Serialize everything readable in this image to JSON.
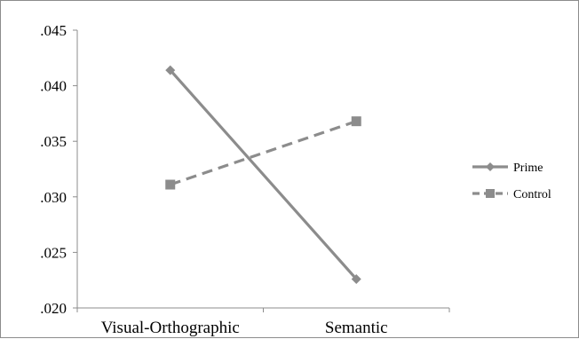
{
  "chart_data": {
    "type": "line",
    "title": "",
    "xlabel": "",
    "ylabel": "",
    "categories": [
      "Visual-Orthographic",
      "Semantic"
    ],
    "ylim": [
      0.02,
      0.045
    ],
    "yticks": [
      {
        "value": 0.02,
        "label": ".020"
      },
      {
        "value": 0.025,
        "label": ".025"
      },
      {
        "value": 0.03,
        "label": ".030"
      },
      {
        "value": 0.035,
        "label": ".035"
      },
      {
        "value": 0.04,
        "label": ".040"
      },
      {
        "value": 0.045,
        "label": ".045"
      }
    ],
    "grid": false,
    "legend_position": "right",
    "series": [
      {
        "name": "Prime",
        "values": [
          0.0414,
          0.0226
        ],
        "color": "#8c8c8c",
        "marker": "diamond",
        "line_style": "solid"
      },
      {
        "name": "Control",
        "values": [
          0.0311,
          0.0368
        ],
        "color": "#8c8c8c",
        "marker": "square",
        "line_style": "dashed"
      }
    ]
  }
}
